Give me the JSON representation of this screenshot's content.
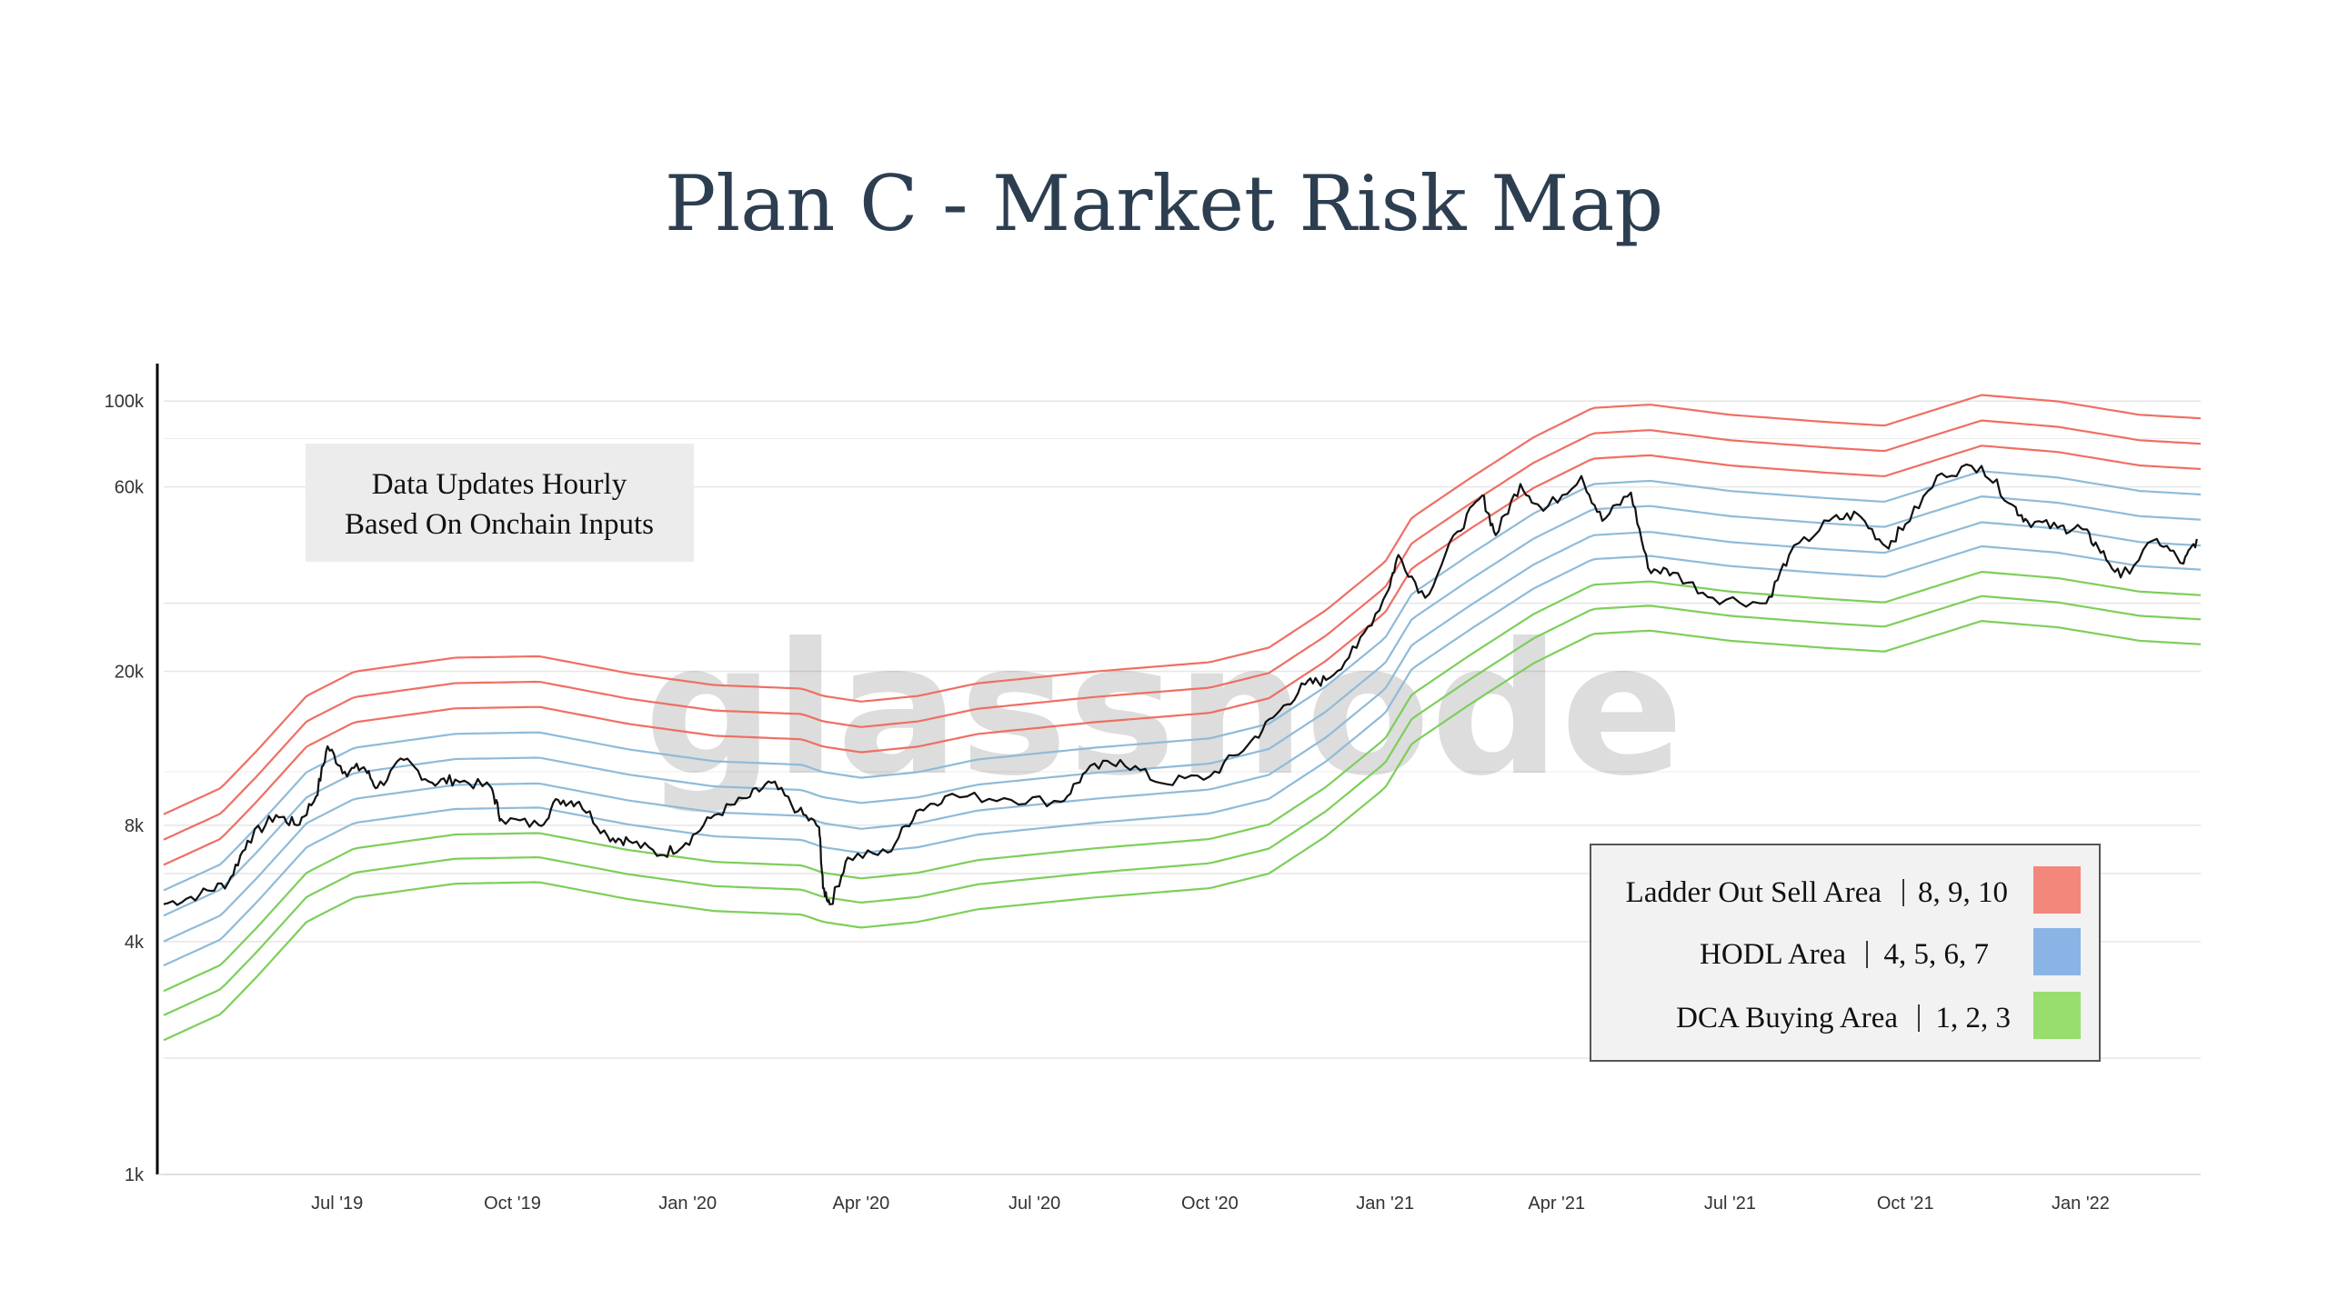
{
  "title": "Plan C - Market Risk Map",
  "watermark": "glassnode",
  "info_box": {
    "line1": "Data Updates Hourly",
    "line2": "Based On Onchain Inputs"
  },
  "legend": {
    "items": [
      {
        "label": "Ladder Out Sell Area",
        "sep": "|",
        "levels": "8, 9, 10",
        "color": "#f4877c"
      },
      {
        "label": "HODL Area",
        "sep": "|",
        "levels": "4, 5, 6, 7",
        "color": "#8ab4e6"
      },
      {
        "label": "DCA Buying Area",
        "sep": "|",
        "levels": "1, 2, 3",
        "color": "#97de6f"
      }
    ]
  },
  "chart_data": {
    "type": "line",
    "title": "Plan C - Market Risk Map",
    "xlabel": "",
    "ylabel": "",
    "y_scale": "log",
    "ylim": [
      1000,
      125000
    ],
    "xlim": [
      "2019-04-01",
      "2022-03-05"
    ],
    "grid": true,
    "y_ticks": [
      {
        "value": 1000,
        "label": "1k"
      },
      {
        "value": 4000,
        "label": "4k"
      },
      {
        "value": 8000,
        "label": "8k"
      },
      {
        "value": 20000,
        "label": "20k"
      },
      {
        "value": 60000,
        "label": "60k"
      },
      {
        "value": 100000,
        "label": "100k"
      }
    ],
    "x_ticks": [
      {
        "date": "2019-07-01",
        "label": "Jul '19"
      },
      {
        "date": "2019-10-01",
        "label": "Oct '19"
      },
      {
        "date": "2020-01-01",
        "label": "Jan '20"
      },
      {
        "date": "2020-04-01",
        "label": "Apr '20"
      },
      {
        "date": "2020-07-01",
        "label": "Jul '20"
      },
      {
        "date": "2020-10-01",
        "label": "Oct '20"
      },
      {
        "date": "2021-01-01",
        "label": "Jan '21"
      },
      {
        "date": "2021-04-01",
        "label": "Apr '21"
      },
      {
        "date": "2021-07-01",
        "label": "Jul '21"
      },
      {
        "date": "2021-10-01",
        "label": "Oct '21"
      },
      {
        "date": "2022-01-01",
        "label": "Jan '22"
      }
    ],
    "band_multipliers": [
      0.5,
      0.58,
      0.67,
      0.78,
      0.9,
      1.05,
      1.22,
      1.42,
      1.65,
      1.92
    ],
    "band_colors": [
      "#7ccf5a",
      "#7ccf5a",
      "#7ccf5a",
      "#8fbbd9",
      "#8fbbd9",
      "#8fbbd9",
      "#8fbbd9",
      "#ef6f63",
      "#ef6f63",
      "#ef6f63"
    ],
    "band_base": [
      [
        "2019-04-01",
        4450
      ],
      [
        "2019-05-01",
        5200
      ],
      [
        "2019-05-20",
        6500
      ],
      [
        "2019-06-15",
        9000
      ],
      [
        "2019-07-10",
        10400
      ],
      [
        "2019-09-01",
        11300
      ],
      [
        "2019-10-15",
        11400
      ],
      [
        "2019-12-01",
        10300
      ],
      [
        "2020-01-15",
        9600
      ],
      [
        "2020-03-01",
        9400
      ],
      [
        "2020-03-12",
        9000
      ],
      [
        "2020-04-01",
        8700
      ],
      [
        "2020-05-01",
        9000
      ],
      [
        "2020-06-01",
        9700
      ],
      [
        "2020-08-01",
        10400
      ],
      [
        "2020-10-01",
        11000
      ],
      [
        "2020-11-01",
        12000
      ],
      [
        "2020-12-01",
        15000
      ],
      [
        "2021-01-01",
        20000
      ],
      [
        "2021-01-15",
        26000
      ],
      [
        "2021-02-15",
        33000
      ],
      [
        "2021-03-20",
        42000
      ],
      [
        "2021-04-20",
        50000
      ],
      [
        "2021-05-20",
        51000
      ],
      [
        "2021-07-01",
        48000
      ],
      [
        "2021-08-20",
        46000
      ],
      [
        "2021-09-20",
        45000
      ],
      [
        "2021-11-10",
        54000
      ],
      [
        "2021-12-20",
        52000
      ],
      [
        "2022-02-01",
        48000
      ],
      [
        "2022-03-05",
        47000
      ]
    ],
    "series": [
      {
        "name": "",
        "color": "#111111",
        "points": [
          [
            "2019-04-01",
            5000
          ],
          [
            "2019-04-20",
            5300
          ],
          [
            "2019-05-05",
            5700
          ],
          [
            "2019-05-15",
            7300
          ],
          [
            "2019-05-30",
            8500
          ],
          [
            "2019-06-10",
            8000
          ],
          [
            "2019-06-20",
            9500
          ],
          [
            "2019-06-26",
            12800
          ],
          [
            "2019-07-05",
            11000
          ],
          [
            "2019-07-15",
            11300
          ],
          [
            "2019-07-22",
            10000
          ],
          [
            "2019-08-05",
            11800
          ],
          [
            "2019-08-20",
            10300
          ],
          [
            "2019-09-01",
            10500
          ],
          [
            "2019-09-20",
            10000
          ],
          [
            "2019-09-25",
            8300
          ],
          [
            "2019-10-15",
            8000
          ],
          [
            "2019-10-25",
            9300
          ],
          [
            "2019-11-05",
            9200
          ],
          [
            "2019-11-20",
            7500
          ],
          [
            "2019-12-01",
            7300
          ],
          [
            "2019-12-18",
            6700
          ],
          [
            "2019-12-31",
            7200
          ],
          [
            "2020-01-15",
            8500
          ],
          [
            "2020-02-01",
            9400
          ],
          [
            "2020-02-14",
            10300
          ],
          [
            "2020-02-28",
            8700
          ],
          [
            "2020-03-10",
            7900
          ],
          [
            "2020-03-12",
            5500
          ],
          [
            "2020-03-16",
            5000
          ],
          [
            "2020-03-25",
            6600
          ],
          [
            "2020-04-15",
            6800
          ],
          [
            "2020-04-30",
            8700
          ],
          [
            "2020-05-15",
            9500
          ],
          [
            "2020-06-15",
            9400
          ],
          [
            "2020-07-15",
            9200
          ],
          [
            "2020-07-28",
            11000
          ],
          [
            "2020-08-15",
            11800
          ],
          [
            "2020-09-05",
            10300
          ],
          [
            "2020-10-01",
            10700
          ],
          [
            "2020-10-21",
            12900
          ],
          [
            "2020-11-05",
            15500
          ],
          [
            "2020-11-20",
            18500
          ],
          [
            "2020-12-01",
            19000
          ],
          [
            "2020-12-17",
            23000
          ],
          [
            "2021-01-02",
            32000
          ],
          [
            "2021-01-08",
            40000
          ],
          [
            "2021-01-22",
            31000
          ],
          [
            "2021-02-08",
            46000
          ],
          [
            "2021-02-21",
            57000
          ],
          [
            "2021-02-28",
            45000
          ],
          [
            "2021-03-13",
            61000
          ],
          [
            "2021-03-25",
            52000
          ],
          [
            "2021-04-14",
            64000
          ],
          [
            "2021-04-25",
            49000
          ],
          [
            "2021-05-10",
            58000
          ],
          [
            "2021-05-19",
            37000
          ],
          [
            "2021-06-01",
            36000
          ],
          [
            "2021-06-22",
            31000
          ],
          [
            "2021-07-20",
            30000
          ],
          [
            "2021-08-01",
            40000
          ],
          [
            "2021-08-22",
            49000
          ],
          [
            "2021-09-06",
            51000
          ],
          [
            "2021-09-21",
            42000
          ],
          [
            "2021-10-01",
            48000
          ],
          [
            "2021-10-20",
            65000
          ],
          [
            "2021-11-10",
            68000
          ],
          [
            "2021-11-26",
            54000
          ],
          [
            "2021-12-04",
            49000
          ],
          [
            "2021-12-20",
            47000
          ],
          [
            "2022-01-01",
            47000
          ],
          [
            "2022-01-10",
            42000
          ],
          [
            "2022-01-22",
            35000
          ],
          [
            "2022-02-10",
            44000
          ],
          [
            "2022-02-24",
            38000
          ],
          [
            "2022-03-03",
            44000
          ]
        ]
      }
    ]
  }
}
